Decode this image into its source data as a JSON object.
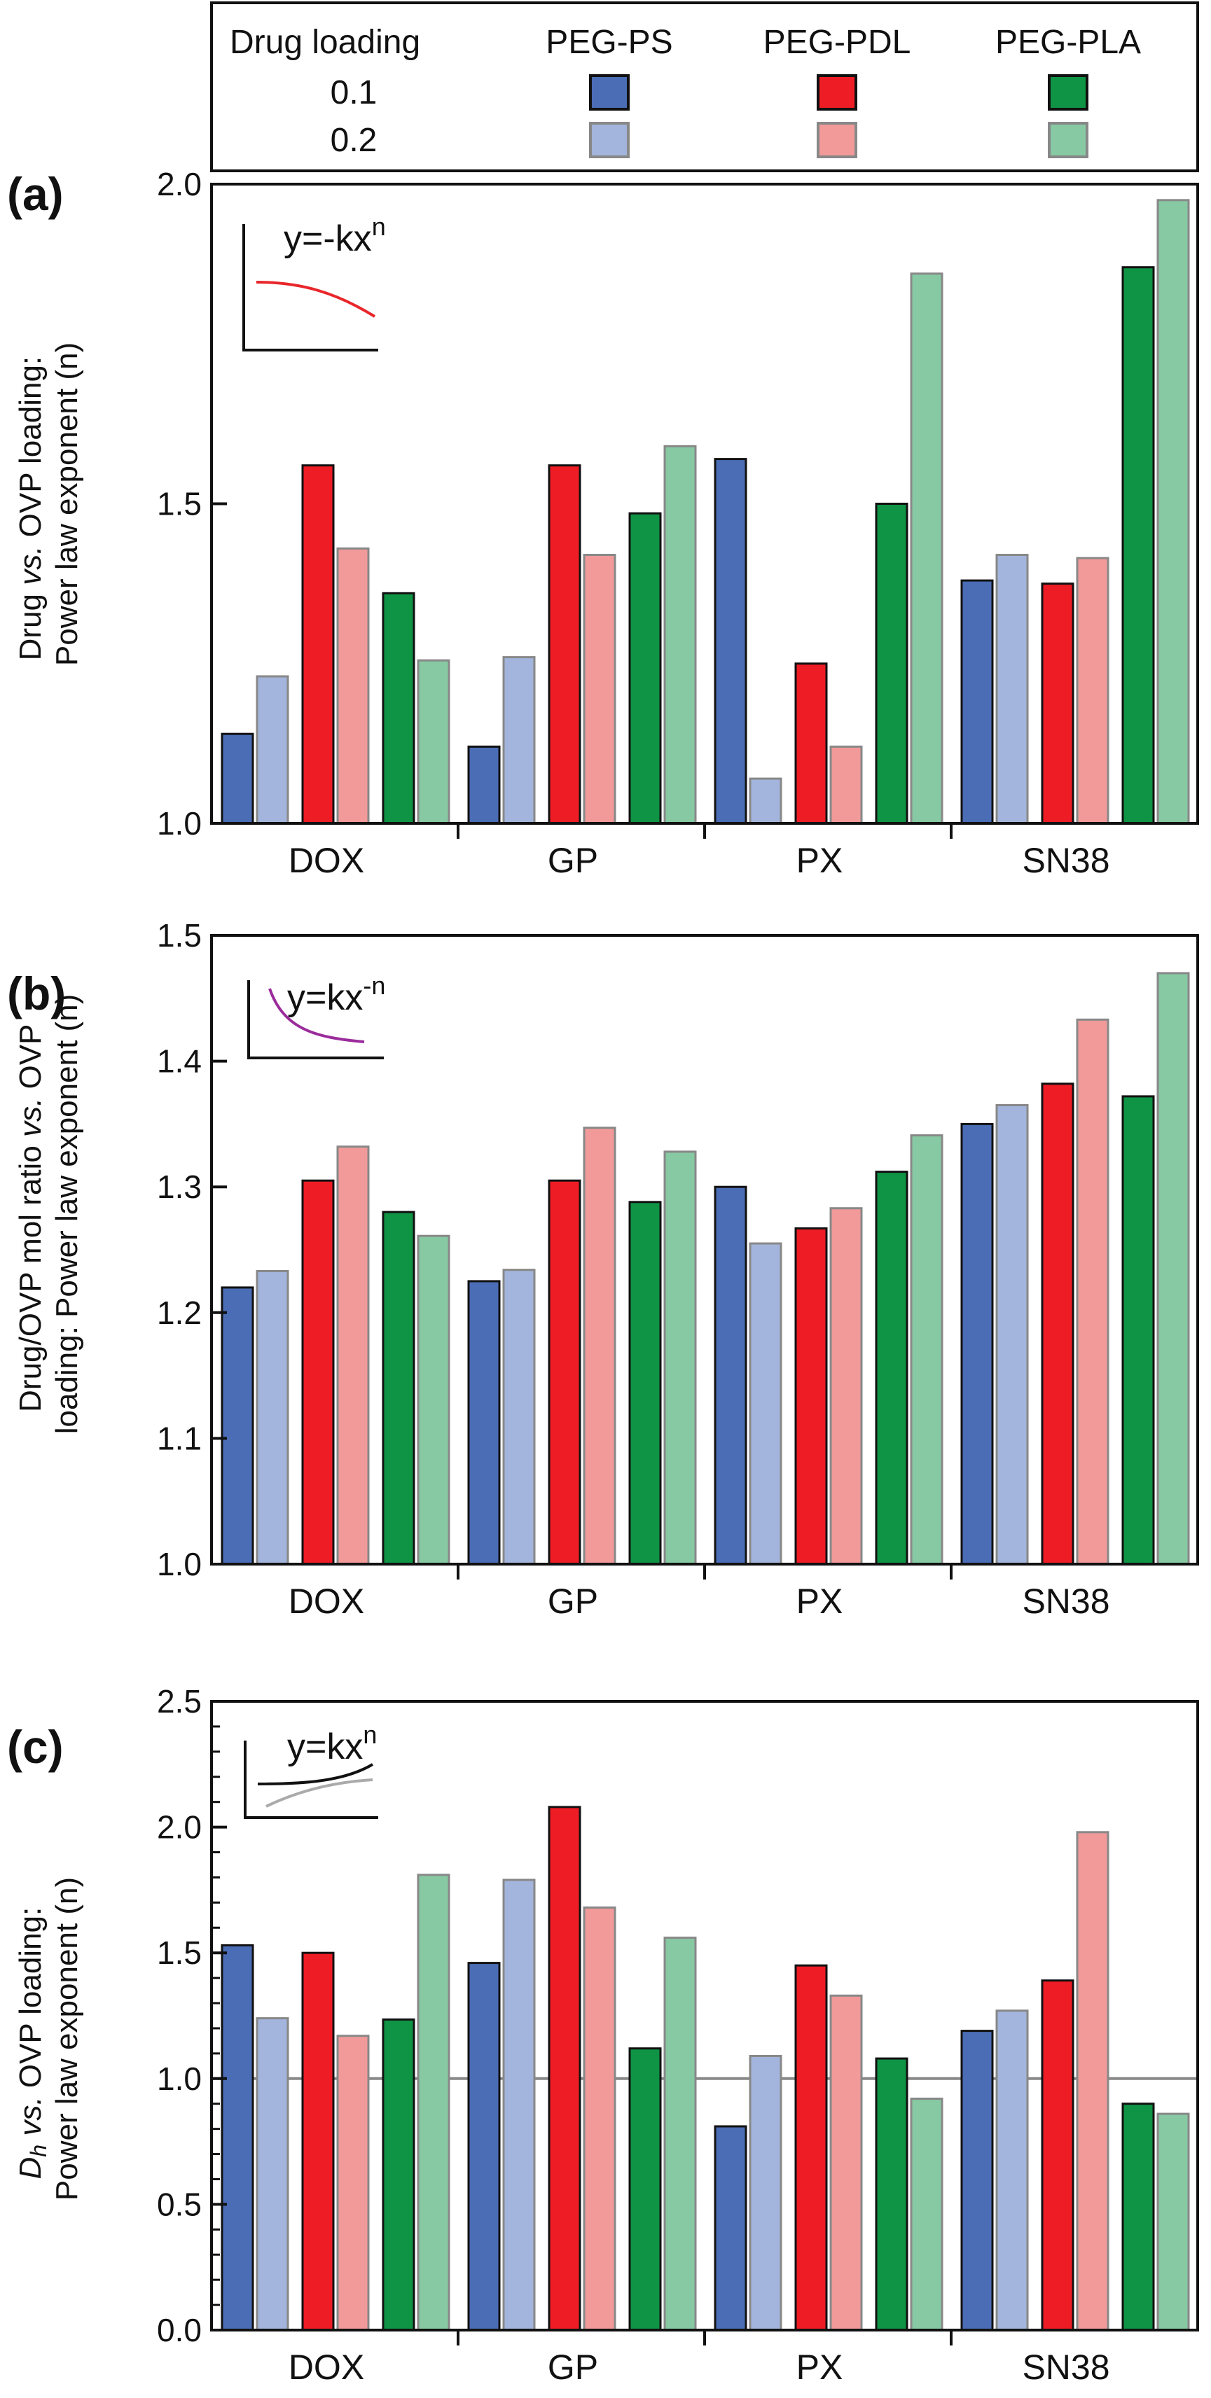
{
  "legend": {
    "header": "Drug loading",
    "polymers": [
      "PEG-PS",
      "PEG-PDL",
      "PEG-PLA"
    ],
    "loadings": [
      "0.1",
      "0.2"
    ]
  },
  "colors": {
    "PEG-PS": [
      "#4a6db5",
      "#a3b5dc"
    ],
    "PEG-PDL": [
      "#ee1c25",
      "#f19a99"
    ],
    "PEG-PLA": [
      "#0e9444",
      "#86c9a2"
    ],
    "inset_a": "#e8262b",
    "inset_b": "#9b2c9c",
    "inset_c_dark": "#111111",
    "inset_c_light": "#aaaaaa",
    "reference_line": "#888888"
  },
  "chart_data": [
    {
      "panel": "(a)",
      "type": "bar",
      "categories": [
        "DOX",
        "GP",
        "PX",
        "SN38"
      ],
      "series": [
        {
          "name": "PEG-PS 0.1",
          "values": [
            1.14,
            1.12,
            1.57,
            1.38
          ]
        },
        {
          "name": "PEG-PS 0.2",
          "values": [
            1.23,
            1.26,
            1.07,
            1.42
          ]
        },
        {
          "name": "PEG-PDL 0.1",
          "values": [
            1.56,
            1.56,
            1.25,
            1.375
          ]
        },
        {
          "name": "PEG-PDL 0.2",
          "values": [
            1.43,
            1.42,
            1.12,
            1.415
          ]
        },
        {
          "name": "PEG-PLA 0.1",
          "values": [
            1.36,
            1.485,
            1.5,
            1.87
          ]
        },
        {
          "name": "PEG-PLA 0.2",
          "values": [
            1.255,
            1.59,
            1.86,
            1.975
          ]
        }
      ],
      "ylabel_parts": [
        "Drug ",
        "vs.",
        " OVP loading:",
        "Power law exponent (n)"
      ],
      "ylim": [
        1.0,
        2.0
      ],
      "yticks": [
        "1.0",
        "1.5",
        "2.0"
      ],
      "inset_equation": {
        "base": "y=-kx",
        "sup": "n"
      }
    },
    {
      "panel": "(b)",
      "type": "bar",
      "categories": [
        "DOX",
        "GP",
        "PX",
        "SN38"
      ],
      "series": [
        {
          "name": "PEG-PS 0.1",
          "values": [
            1.22,
            1.225,
            1.3,
            1.35
          ]
        },
        {
          "name": "PEG-PS 0.2",
          "values": [
            1.233,
            1.234,
            1.255,
            1.365
          ]
        },
        {
          "name": "PEG-PDL 0.1",
          "values": [
            1.305,
            1.305,
            1.267,
            1.382
          ]
        },
        {
          "name": "PEG-PDL 0.2",
          "values": [
            1.332,
            1.347,
            1.283,
            1.433
          ]
        },
        {
          "name": "PEG-PLA 0.1",
          "values": [
            1.28,
            1.288,
            1.312,
            1.372
          ]
        },
        {
          "name": "PEG-PLA 0.2",
          "values": [
            1.261,
            1.328,
            1.341,
            1.47
          ]
        }
      ],
      "ylabel_parts": [
        "Drug/OVP mol ratio ",
        "vs.",
        " OVP",
        "loading: Power law exponent (n)"
      ],
      "ylim": [
        1.0,
        1.5
      ],
      "yticks": [
        "1.0",
        "1.1",
        "1.2",
        "1.3",
        "1.4",
        "1.5"
      ],
      "inset_equation": {
        "base": "y=kx",
        "sup": "-n"
      }
    },
    {
      "panel": "(c)",
      "type": "bar",
      "categories": [
        "DOX",
        "GP",
        "PX",
        "SN38"
      ],
      "series": [
        {
          "name": "PEG-PS 0.1",
          "values": [
            1.53,
            1.46,
            0.81,
            1.19
          ]
        },
        {
          "name": "PEG-PS 0.2",
          "values": [
            1.24,
            1.79,
            1.09,
            1.27
          ]
        },
        {
          "name": "PEG-PDL 0.1",
          "values": [
            1.5,
            2.08,
            1.45,
            1.39
          ]
        },
        {
          "name": "PEG-PDL 0.2",
          "values": [
            1.17,
            1.68,
            1.33,
            1.98
          ]
        },
        {
          "name": "PEG-PLA 0.1",
          "values": [
            1.235,
            1.12,
            1.08,
            0.9
          ]
        },
        {
          "name": "PEG-PLA 0.2",
          "values": [
            1.81,
            1.56,
            0.92,
            0.86
          ]
        }
      ],
      "ylabel_parts": [
        "D",
        "h",
        " vs.",
        " OVP loading:",
        "Power law exponent (n)"
      ],
      "ylim": [
        0.0,
        2.5
      ],
      "yticks": [
        "0.0",
        "0.5",
        "1.0",
        "1.5",
        "2.0",
        "2.5"
      ],
      "reference_line": 1.0,
      "inset_equation": {
        "base": "y=kx",
        "sup": "n"
      }
    }
  ]
}
